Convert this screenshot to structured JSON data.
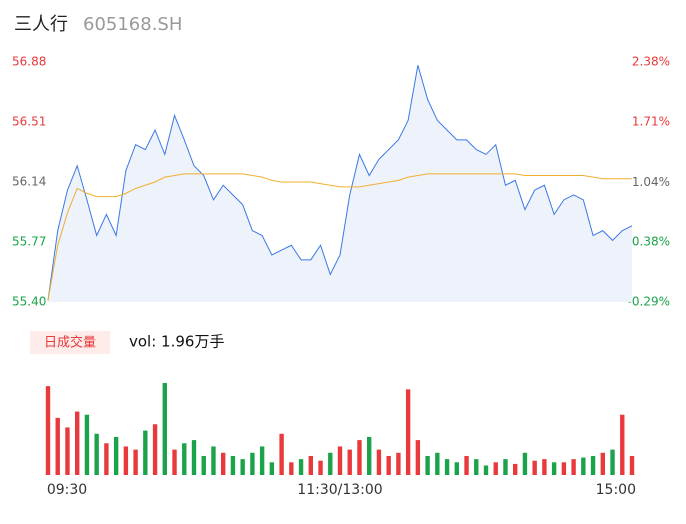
{
  "chart_data": [
    {
      "type": "line",
      "title": "三人行",
      "subtitle": "605168.SH",
      "categories": [
        "09:30",
        null,
        null,
        null,
        null,
        null,
        null,
        null,
        null,
        null,
        null,
        null,
        null,
        null,
        null,
        null,
        null,
        null,
        null,
        null,
        null,
        null,
        null,
        null,
        null,
        null,
        null,
        null,
        null,
        null,
        "11:30/13:00",
        null,
        null,
        null,
        null,
        null,
        null,
        null,
        null,
        null,
        null,
        null,
        null,
        null,
        null,
        null,
        null,
        null,
        null,
        null,
        null,
        null,
        null,
        null,
        null,
        null,
        null,
        null,
        null,
        null,
        "15:00"
      ],
      "series": [
        {
          "color": "#3b78e7",
          "values": [
            55.41,
            55.84,
            56.09,
            56.24,
            56.03,
            55.81,
            55.94,
            55.81,
            56.21,
            56.37,
            56.34,
            56.46,
            56.31,
            56.55,
            56.4,
            56.24,
            56.18,
            56.03,
            56.12,
            56.06,
            56.0,
            55.84,
            55.81,
            55.69,
            55.72,
            55.75,
            55.66,
            55.66,
            55.75,
            55.57,
            55.69,
            56.06,
            56.31,
            56.18,
            56.28,
            56.34,
            56.4,
            56.52,
            56.86,
            56.65,
            56.52,
            56.46,
            56.4,
            56.4,
            56.34,
            56.31,
            56.37,
            56.12,
            56.15,
            55.97,
            56.09,
            56.12,
            55.94,
            56.03,
            56.06,
            56.03,
            55.81,
            55.84,
            55.78,
            55.84,
            55.87
          ]
        },
        {
          "color": "#f0b030",
          "values": [
            55.41,
            55.75,
            55.95,
            56.1,
            56.07,
            56.05,
            56.05,
            56.05,
            56.07,
            56.1,
            56.12,
            56.14,
            56.17,
            56.18,
            56.19,
            56.19,
            56.19,
            56.19,
            56.19,
            56.19,
            56.19,
            56.18,
            56.17,
            56.15,
            56.14,
            56.14,
            56.14,
            56.14,
            56.13,
            56.12,
            56.11,
            56.11,
            56.11,
            56.12,
            56.13,
            56.14,
            56.15,
            56.17,
            56.18,
            56.19,
            56.19,
            56.19,
            56.19,
            56.19,
            56.19,
            56.19,
            56.19,
            56.19,
            56.19,
            56.18,
            56.18,
            56.18,
            56.18,
            56.18,
            56.18,
            56.18,
            56.17,
            56.16,
            56.16,
            56.16,
            56.16
          ]
        }
      ],
      "area_color": "#eef2fb",
      "ylim": [
        55.4,
        56.88
      ],
      "yticks": [
        {
          "value": 55.4,
          "label": "55.40"
        },
        55.77,
        56.14,
        56.51,
        56.88
      ],
      "y2lim": [
        -0.29,
        2.38
      ],
      "y2ticks": [
        {
          "value": -0.29,
          "label": "-0.29%"
        },
        {
          "value": 0.38,
          "label": "0.38%"
        },
        {
          "value": 1.04,
          "label": "1.04%"
        },
        {
          "value": 1.71,
          "label": "1.71%"
        },
        {
          "value": 2.38,
          "label": "2.38%"
        }
      ],
      "up_color": "#e8393c",
      "down_color": "#1aa34a",
      "flat_color": "#666666"
    },
    {
      "type": "bar",
      "title": "vol: 1.96万手",
      "button": "日成交量",
      "values": [
        280,
        180,
        150,
        200,
        190,
        130,
        100,
        120,
        90,
        80,
        140,
        160,
        290,
        80,
        100,
        110,
        60,
        90,
        70,
        60,
        50,
        70,
        90,
        40,
        130,
        40,
        50,
        60,
        45,
        70,
        90,
        80,
        110,
        120,
        80,
        60,
        70,
        270,
        110,
        60,
        70,
        50,
        40,
        60,
        50,
        30,
        40,
        50,
        35,
        70,
        45,
        50,
        40,
        40,
        50,
        55,
        60,
        70,
        80,
        190,
        60
      ],
      "up_color": "#e8393c",
      "down_color": "#1aa34a"
    }
  ]
}
